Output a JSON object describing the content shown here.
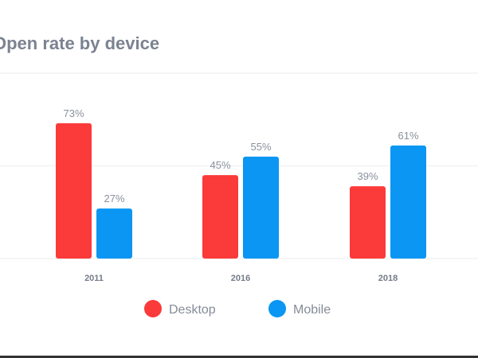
{
  "chart_data": {
    "type": "bar",
    "title": "Open rate by device",
    "categories": [
      "2011",
      "2016",
      "2018"
    ],
    "series": [
      {
        "name": "Desktop",
        "values": [
          73,
          45,
          39
        ],
        "color": "#fb3a3a"
      },
      {
        "name": "Mobile",
        "values": [
          27,
          55,
          61
        ],
        "color": "#0a96f2"
      }
    ],
    "value_suffix": "%",
    "ylim": [
      0,
      100
    ],
    "grid": true,
    "legend_position": "bottom-center",
    "xlabel": "",
    "ylabel": ""
  }
}
